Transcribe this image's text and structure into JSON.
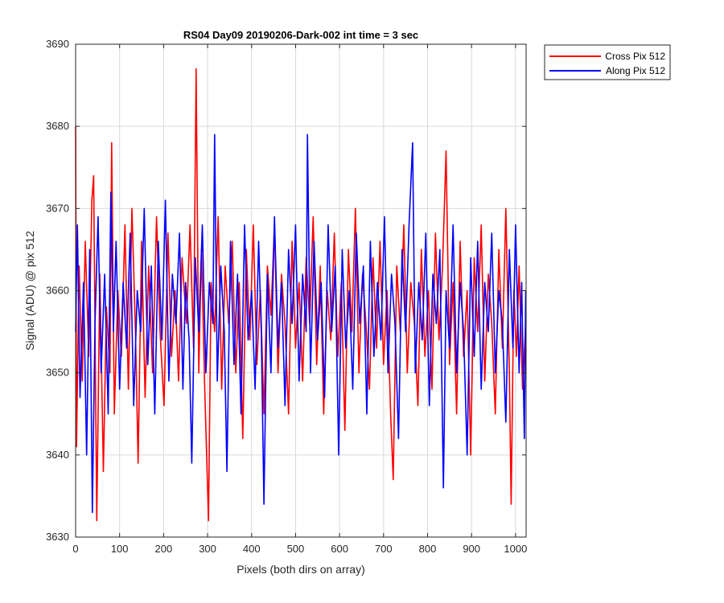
{
  "chart_data": {
    "type": "line",
    "title": "RS04 Day09 20190206-Dark-002 int time = 3 sec",
    "xlabel": "Pixels (both dirs on array)",
    "ylabel": "Signal (ADU) @ pix 512",
    "xlim": [
      0,
      1024
    ],
    "ylim": [
      3630,
      3690
    ],
    "xticks": [
      0,
      100,
      200,
      300,
      400,
      500,
      600,
      700,
      800,
      900,
      1000
    ],
    "yticks": [
      3630,
      3640,
      3650,
      3660,
      3670,
      3680,
      3690
    ],
    "grid": true,
    "legend_position": "outside-top-right",
    "series": [
      {
        "name": "Cross Pix 512",
        "color": "#ff0000",
        "sampling_note_points": [
          [
            0,
            3680
          ],
          [
            2,
            3641
          ],
          [
            8,
            3663
          ],
          [
            15,
            3649
          ],
          [
            22,
            3666
          ],
          [
            30,
            3652
          ],
          [
            37,
            3671
          ],
          [
            41,
            3674
          ],
          [
            48,
            3632
          ],
          [
            55,
            3662
          ],
          [
            63,
            3638
          ],
          [
            70,
            3658
          ],
          [
            78,
            3650
          ],
          [
            82,
            3678
          ],
          [
            88,
            3645
          ],
          [
            96,
            3660
          ],
          [
            104,
            3652
          ],
          [
            112,
            3668
          ],
          [
            120,
            3648
          ],
          [
            128,
            3670
          ],
          [
            136,
            3655
          ],
          [
            142,
            3639
          ],
          [
            150,
            3666
          ],
          [
            158,
            3647
          ],
          [
            166,
            3663
          ],
          [
            175,
            3650
          ],
          [
            184,
            3669
          ],
          [
            192,
            3655
          ],
          [
            201,
            3646
          ],
          [
            210,
            3667
          ],
          [
            218,
            3652
          ],
          [
            226,
            3660
          ],
          [
            234,
            3649
          ],
          [
            242,
            3664
          ],
          [
            252,
            3656
          ],
          [
            260,
            3668
          ],
          [
            268,
            3653
          ],
          [
            274,
            3687
          ],
          [
            280,
            3650
          ],
          [
            286,
            3665
          ],
          [
            294,
            3647
          ],
          [
            302,
            3632
          ],
          [
            308,
            3661
          ],
          [
            316,
            3655
          ],
          [
            324,
            3669
          ],
          [
            332,
            3648
          ],
          [
            340,
            3663
          ],
          [
            348,
            3656
          ],
          [
            356,
            3666
          ],
          [
            364,
            3650
          ],
          [
            372,
            3661
          ],
          [
            380,
            3642
          ],
          [
            388,
            3665
          ],
          [
            396,
            3654
          ],
          [
            404,
            3668
          ],
          [
            412,
            3651
          ],
          [
            420,
            3660
          ],
          [
            428,
            3645
          ],
          [
            436,
            3663
          ],
          [
            444,
            3657
          ],
          [
            452,
            3668
          ],
          [
            460,
            3650
          ],
          [
            468,
            3662
          ],
          [
            476,
            3656
          ],
          [
            484,
            3645
          ],
          [
            492,
            3666
          ],
          [
            500,
            3653
          ],
          [
            508,
            3661
          ],
          [
            516,
            3649
          ],
          [
            524,
            3664
          ],
          [
            532,
            3656
          ],
          [
            540,
            3669
          ],
          [
            548,
            3651
          ],
          [
            556,
            3663
          ],
          [
            564,
            3645
          ],
          [
            572,
            3660
          ],
          [
            580,
            3654
          ],
          [
            588,
            3667
          ],
          [
            596,
            3652
          ],
          [
            604,
            3661
          ],
          [
            612,
            3643
          ],
          [
            620,
            3665
          ],
          [
            628,
            3655
          ],
          [
            636,
            3670
          ],
          [
            644,
            3650
          ],
          [
            652,
            3662
          ],
          [
            660,
            3656
          ],
          [
            668,
            3648
          ],
          [
            676,
            3664
          ],
          [
            684,
            3653
          ],
          [
            692,
            3666
          ],
          [
            700,
            3651
          ],
          [
            708,
            3660
          ],
          [
            716,
            3645
          ],
          [
            722,
            3637
          ],
          [
            730,
            3663
          ],
          [
            738,
            3655
          ],
          [
            746,
            3668
          ],
          [
            754,
            3650
          ],
          [
            762,
            3661
          ],
          [
            770,
            3656
          ],
          [
            778,
            3646
          ],
          [
            786,
            3665
          ],
          [
            794,
            3652
          ],
          [
            802,
            3660
          ],
          [
            810,
            3648
          ],
          [
            818,
            3667
          ],
          [
            826,
            3654
          ],
          [
            834,
            3663
          ],
          [
            842,
            3677
          ],
          [
            850,
            3651
          ],
          [
            858,
            3661
          ],
          [
            866,
            3645
          ],
          [
            874,
            3666
          ],
          [
            882,
            3652
          ],
          [
            890,
            3660
          ],
          [
            898,
            3640
          ],
          [
            906,
            3664
          ],
          [
            914,
            3655
          ],
          [
            922,
            3668
          ],
          [
            930,
            3649
          ],
          [
            938,
            3662
          ],
          [
            946,
            3656
          ],
          [
            954,
            3645
          ],
          [
            962,
            3665
          ],
          [
            970,
            3653
          ],
          [
            978,
            3670
          ],
          [
            986,
            3650
          ],
          [
            990,
            3634
          ],
          [
            996,
            3660
          ],
          [
            1002,
            3652
          ],
          [
            1008,
            3663
          ],
          [
            1016,
            3648
          ],
          [
            1023,
            3656
          ]
        ]
      },
      {
        "name": "Along Pix 512",
        "color": "#0000ff",
        "sampling_note_points": [
          [
            0,
            3655
          ],
          [
            4,
            3668
          ],
          [
            10,
            3647
          ],
          [
            18,
            3661
          ],
          [
            25,
            3640
          ],
          [
            32,
            3665
          ],
          [
            38,
            3633
          ],
          [
            44,
            3656
          ],
          [
            51,
            3669
          ],
          [
            58,
            3650
          ],
          [
            66,
            3662
          ],
          [
            74,
            3645
          ],
          [
            80,
            3672
          ],
          [
            86,
            3655
          ],
          [
            92,
            3666
          ],
          [
            100,
            3648
          ],
          [
            108,
            3661
          ],
          [
            116,
            3653
          ],
          [
            124,
            3667
          ],
          [
            132,
            3646
          ],
          [
            140,
            3660
          ],
          [
            148,
            3655
          ],
          [
            156,
            3670
          ],
          [
            164,
            3651
          ],
          [
            172,
            3663
          ],
          [
            180,
            3645
          ],
          [
            188,
            3666
          ],
          [
            196,
            3654
          ],
          [
            204,
            3671
          ],
          [
            212,
            3649
          ],
          [
            220,
            3662
          ],
          [
            228,
            3656
          ],
          [
            236,
            3667
          ],
          [
            244,
            3648
          ],
          [
            250,
            3661
          ],
          [
            258,
            3654
          ],
          [
            264,
            3639
          ],
          [
            272,
            3664
          ],
          [
            280,
            3655
          ],
          [
            288,
            3668
          ],
          [
            296,
            3650
          ],
          [
            304,
            3661
          ],
          [
            312,
            3656
          ],
          [
            316,
            3679
          ],
          [
            322,
            3649
          ],
          [
            330,
            3663
          ],
          [
            338,
            3655
          ],
          [
            344,
            3638
          ],
          [
            352,
            3666
          ],
          [
            360,
            3651
          ],
          [
            368,
            3662
          ],
          [
            376,
            3645
          ],
          [
            384,
            3668
          ],
          [
            392,
            3654
          ],
          [
            400,
            3660
          ],
          [
            408,
            3648
          ],
          [
            416,
            3666
          ],
          [
            422,
            3655
          ],
          [
            428,
            3634
          ],
          [
            436,
            3662
          ],
          [
            444,
            3650
          ],
          [
            452,
            3669
          ],
          [
            460,
            3653
          ],
          [
            468,
            3661
          ],
          [
            476,
            3646
          ],
          [
            484,
            3665
          ],
          [
            492,
            3656
          ],
          [
            500,
            3668
          ],
          [
            508,
            3649
          ],
          [
            516,
            3662
          ],
          [
            524,
            3655
          ],
          [
            527,
            3679
          ],
          [
            534,
            3650
          ],
          [
            542,
            3666
          ],
          [
            550,
            3654
          ],
          [
            558,
            3661
          ],
          [
            566,
            3647
          ],
          [
            574,
            3668
          ],
          [
            582,
            3655
          ],
          [
            590,
            3663
          ],
          [
            598,
            3640
          ],
          [
            606,
            3665
          ],
          [
            614,
            3653
          ],
          [
            622,
            3660
          ],
          [
            630,
            3648
          ],
          [
            638,
            3667
          ],
          [
            646,
            3656
          ],
          [
            654,
            3663
          ],
          [
            662,
            3645
          ],
          [
            670,
            3666
          ],
          [
            678,
            3652
          ],
          [
            686,
            3661
          ],
          [
            694,
            3654
          ],
          [
            702,
            3669
          ],
          [
            710,
            3650
          ],
          [
            718,
            3662
          ],
          [
            726,
            3656
          ],
          [
            734,
            3642
          ],
          [
            742,
            3665
          ],
          [
            750,
            3655
          ],
          [
            758,
            3668
          ],
          [
            766,
            3678
          ],
          [
            772,
            3650
          ],
          [
            780,
            3661
          ],
          [
            788,
            3654
          ],
          [
            796,
            3667
          ],
          [
            804,
            3646
          ],
          [
            812,
            3662
          ],
          [
            820,
            3656
          ],
          [
            828,
            3665
          ],
          [
            836,
            3636
          ],
          [
            842,
            3660
          ],
          [
            850,
            3653
          ],
          [
            858,
            3668
          ],
          [
            866,
            3650
          ],
          [
            874,
            3661
          ],
          [
            882,
            3655
          ],
          [
            890,
            3640
          ],
          [
            898,
            3664
          ],
          [
            906,
            3652
          ],
          [
            914,
            3666
          ],
          [
            922,
            3648
          ],
          [
            930,
            3661
          ],
          [
            938,
            3655
          ],
          [
            946,
            3667
          ],
          [
            954,
            3650
          ],
          [
            962,
            3660
          ],
          [
            970,
            3656
          ],
          [
            978,
            3644
          ],
          [
            986,
            3665
          ],
          [
            994,
            3653
          ],
          [
            1000,
            3668
          ],
          [
            1008,
            3650
          ],
          [
            1014,
            3661
          ],
          [
            1020,
            3642
          ],
          [
            1023,
            3660
          ]
        ]
      }
    ]
  }
}
